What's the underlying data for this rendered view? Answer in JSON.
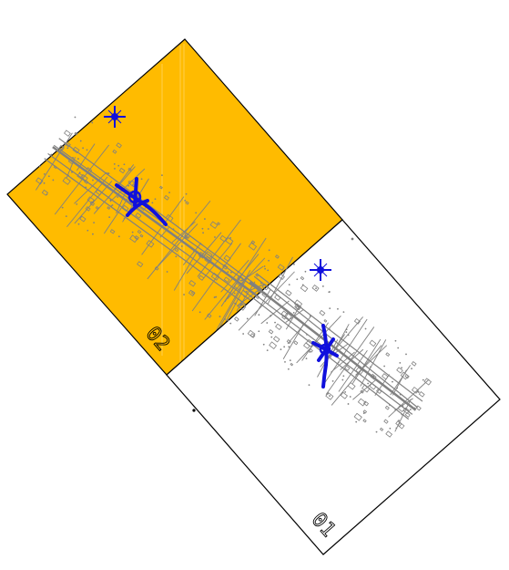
{
  "sheets": [
    {
      "label": "01",
      "fill": "#ffffff",
      "state": "unselected"
    },
    {
      "label": "02",
      "fill": "#ffbb00",
      "state": "highlighted"
    }
  ],
  "colors": {
    "background": "#ffffff",
    "frame": "#000000",
    "map_linework": "#808080",
    "route": "#1010dd",
    "highlight": "#ffbb00"
  },
  "icons": [
    "north-arrow-icon",
    "north-arrow-icon"
  ]
}
